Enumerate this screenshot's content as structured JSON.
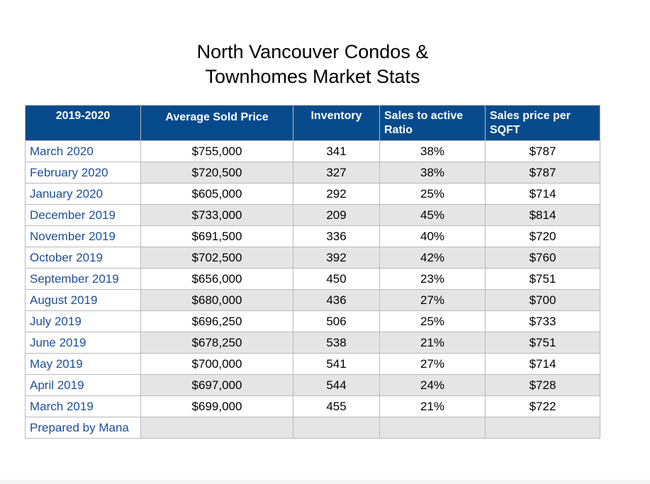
{
  "title": {
    "line1": "North Vancouver Condos &",
    "line2": "Townhomes Market Stats"
  },
  "table": {
    "headers": [
      "2019-2020",
      "Average Sold Price",
      "Inventory",
      "Sales to active Ratio",
      "Sales price per SQFT"
    ],
    "rows": [
      [
        "March 2020",
        "$755,000",
        "341",
        "38%",
        "$787"
      ],
      [
        "February 2020",
        "$720,500",
        "327",
        "38%",
        "$787"
      ],
      [
        "January 2020",
        "$605,000",
        "292",
        "25%",
        "$714"
      ],
      [
        "December 2019",
        "$733,000",
        "209",
        "45%",
        "$814"
      ],
      [
        "November 2019",
        "$691,500",
        "336",
        "40%",
        "$720"
      ],
      [
        "October 2019",
        "$702,500",
        "392",
        "42%",
        "$760"
      ],
      [
        "September 2019",
        "$656,000",
        "450",
        "23%",
        "$751"
      ],
      [
        "August 2019",
        "$680,000",
        "436",
        "27%",
        "$700"
      ],
      [
        "July 2019",
        "$696,250",
        "506",
        "25%",
        "$733"
      ],
      [
        "June 2019",
        "$678,250",
        "538",
        "21%",
        "$751"
      ],
      [
        "May 2019",
        "$700,000",
        "541",
        "27%",
        "$714"
      ],
      [
        "April 2019",
        "$697,000",
        "544",
        "24%",
        "$728"
      ],
      [
        "March 2019",
        "$699,000",
        "455",
        "21%",
        "$722"
      ]
    ],
    "footer": [
      "Prepared by Mana",
      "",
      "",
      "",
      ""
    ]
  },
  "colors": {
    "header_bg": "#074b8c",
    "header_text": "#ffffff",
    "label_text": "#1d4e9a",
    "stripe": "#e5e5e5",
    "border": "#b9b9b9"
  }
}
